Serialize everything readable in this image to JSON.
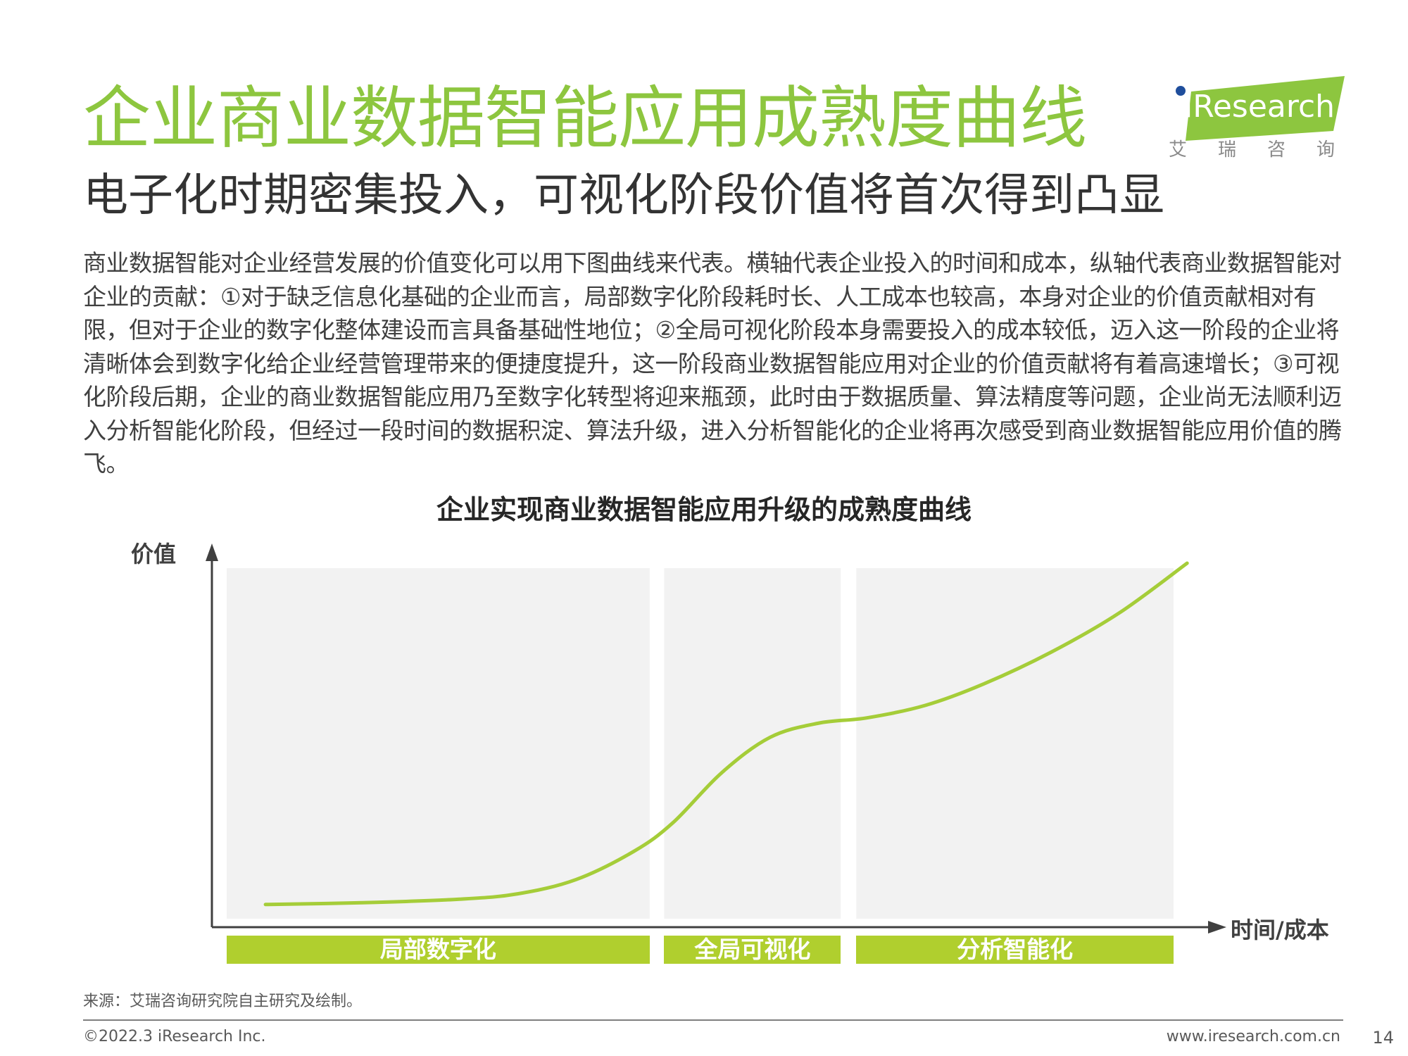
{
  "colors": {
    "accent": "#8dc63f",
    "curve": "#a5cd39",
    "band": "#b0cf2e",
    "panel": "#f2f2f2",
    "axis": "#404040"
  },
  "header": {
    "title": "企业商业数据智能应用成熟度曲线",
    "subtitle": "电子化时期密集投入，可视化阶段价值将首次得到凸显"
  },
  "logo": {
    "text": "iResearch",
    "cn": "艾瑞咨询"
  },
  "body_text": "商业数据智能对企业经营发展的价值变化可以用下图曲线来代表。横轴代表企业投入的时间和成本，纵轴代表商业数据智能对企业的贡献：①对于缺乏信息化基础的企业而言，局部数字化阶段耗时长、人工成本也较高，本身对企业的价值贡献相对有限，但对于企业的数字化整体建设而言具备基础性地位；②全局可视化阶段本身需要投入的成本较低，迈入这一阶段的企业将清晰体会到数字化给企业经营管理带来的便捷度提升，这一阶段商业数据智能应用对企业的价值贡献将有着高速增长；③可视化阶段后期，企业的商业数据智能应用乃至数字化转型将迎来瓶颈，此时由于数据质量、算法精度等问题，企业尚无法顺利迈入分析智能化阶段，但经过一段时间的数据积淀、算法升级，进入分析智能化的企业将再次感受到商业数据智能应用价值的腾飞。",
  "chart_data": {
    "type": "line",
    "title": "企业实现商业数据智能应用升级的成熟度曲线",
    "ylabel": "价值",
    "xlabel": "时间/成本",
    "stages": [
      "局部数字化",
      "全局可视化",
      "分析智能化"
    ],
    "stage_bounds": [
      [
        0,
        0.436
      ],
      [
        0.451,
        0.633
      ],
      [
        0.649,
        0.976
      ]
    ],
    "x": [
      0.04,
      0.14,
      0.24,
      0.3,
      0.36,
      0.42,
      0.46,
      0.51,
      0.56,
      0.61,
      0.66,
      0.72,
      0.78,
      0.85,
      0.92,
      0.99
    ],
    "y": [
      0.04,
      0.045,
      0.055,
      0.07,
      0.11,
      0.19,
      0.27,
      0.41,
      0.51,
      0.55,
      0.565,
      0.6,
      0.66,
      0.75,
      0.86,
      1.0
    ],
    "xlim": [
      0,
      1
    ],
    "ylim": [
      0,
      1
    ],
    "axis_ticks": false,
    "grid": false
  },
  "footer": {
    "source": "来源：艾瑞咨询研究院自主研究及绘制。",
    "copyright": "©2022.3 iResearch Inc.",
    "website": "www.iresearch.com.cn",
    "page": "14"
  }
}
